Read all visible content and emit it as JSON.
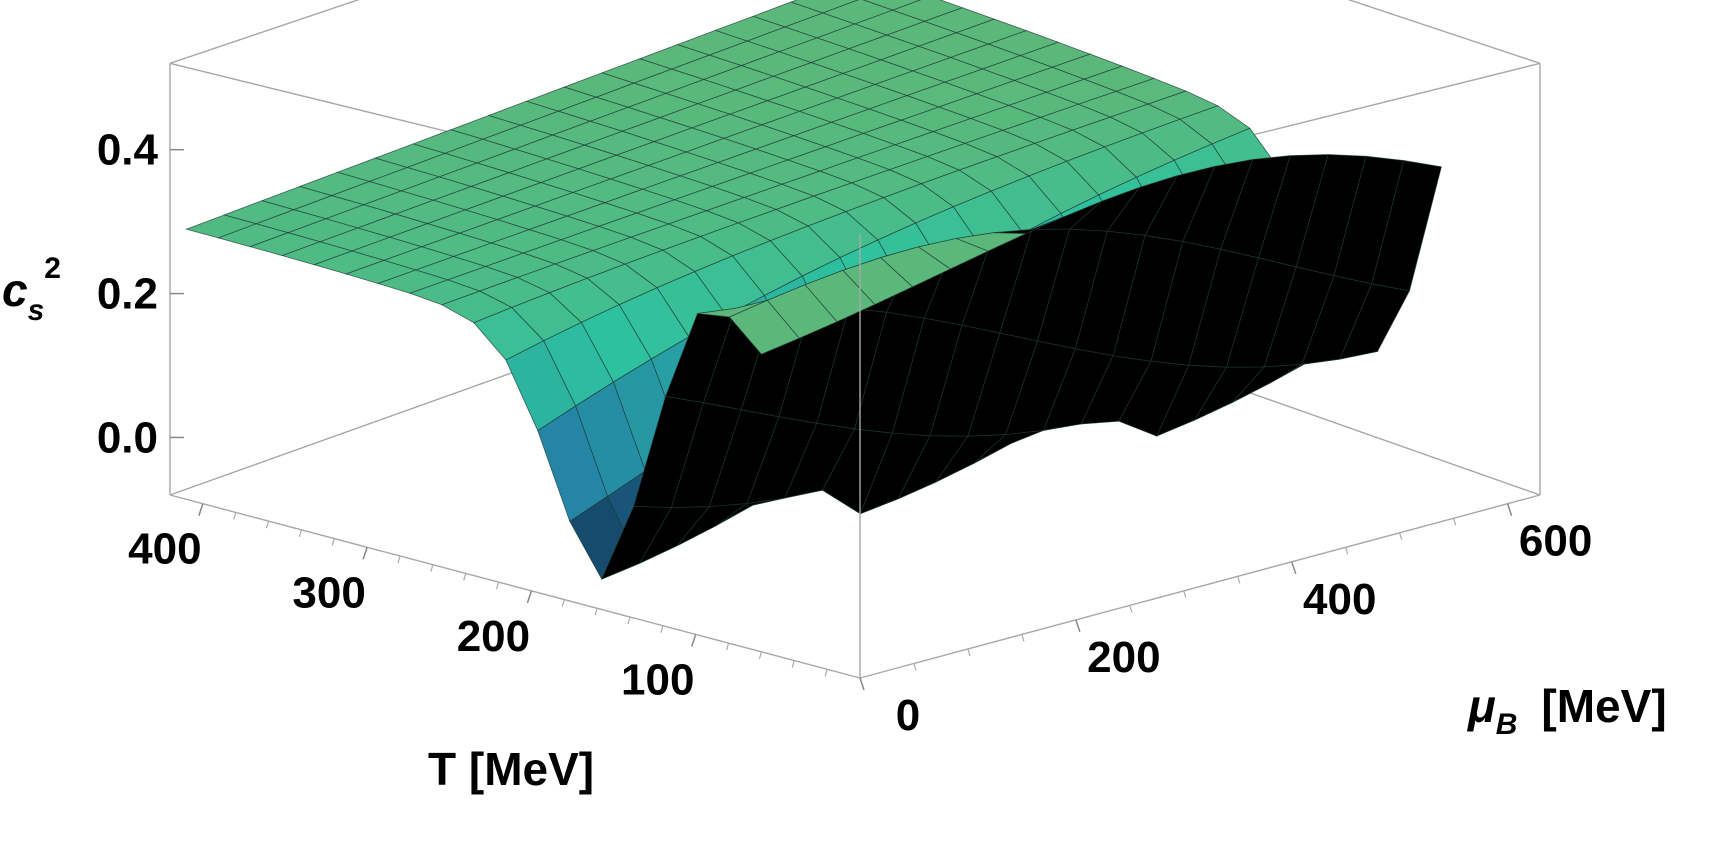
{
  "chart_data": {
    "type": "surface3d",
    "zlabel": "c_s^2",
    "xlabel": "T [MeV]",
    "ylabel": "μ_B [MeV]",
    "axis_labels": {
      "z_main": "c",
      "z_sub": "s",
      "z_sup": "2",
      "x": "T [MeV]",
      "y_main": "μ",
      "y_sub": "B",
      "y_unit": "[MeV]"
    },
    "z_ticks": [
      "0.0",
      "0.2",
      "0.4"
    ],
    "t_ticks": [
      "100",
      "200",
      "300",
      "400"
    ],
    "mu_ticks": [
      "0",
      "200",
      "400",
      "600"
    ],
    "t_range": [
      0,
      420
    ],
    "mu_range": [
      0,
      630
    ],
    "z_range": [
      -0.08,
      0.52
    ],
    "surface_t_range": [
      60,
      410
    ],
    "surface_mu_range": [
      0,
      630
    ],
    "grid_lines": 18,
    "corner_values": [
      {
        "T": 410,
        "mu_B": 0,
        "cs2": 0.3
      },
      {
        "T": 410,
        "mu_B": 630,
        "cs2": 0.33
      },
      {
        "T": 150,
        "mu_B": 0,
        "cs2": 0.0
      },
      {
        "T": 60,
        "mu_B": 0,
        "cs2": 0.06
      },
      {
        "T": 60,
        "mu_B": 630,
        "cs2": 0.04
      },
      {
        "T": 120,
        "mu_B": 630,
        "cs2": 0.13
      }
    ],
    "colors": {
      "high": "#5cb87a",
      "mid": "#2ec2a0",
      "low": "#2175a8",
      "dark": "#0f2e44"
    }
  }
}
